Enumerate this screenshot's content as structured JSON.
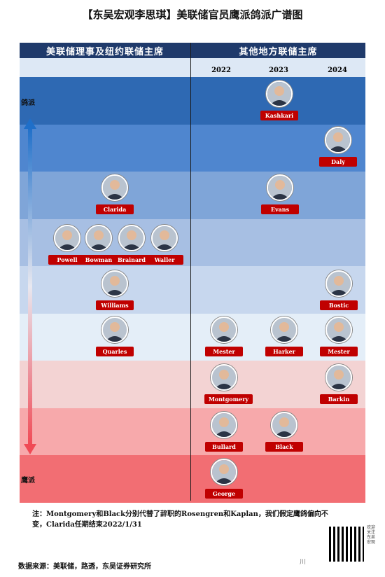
{
  "title": "【东吴宏观李思琪】美联储官员鹰派鸽派广谱图",
  "header": {
    "left": "美联储理事及纽约联储主席",
    "right": "其他地方联储主席",
    "years": [
      "2022",
      "2023",
      "2024"
    ]
  },
  "axis": {
    "top_label": "鸽派",
    "bottom_label": "鹰派"
  },
  "bands": [
    {
      "color": "#2e69b3"
    },
    {
      "color": "#4f86cf"
    },
    {
      "color": "#7fa5d8"
    },
    {
      "color": "#a7bfe3"
    },
    {
      "color": "#c7d7ee"
    },
    {
      "color": "#e4eef8"
    },
    {
      "color": "#f3d3d3"
    },
    {
      "color": "#f7a9ab"
    },
    {
      "color": "#f26e73"
    }
  ],
  "people": {
    "kashkari": "Kashkari",
    "daly": "Daly",
    "clarida": "Clarida",
    "evans": "Evans",
    "powell": "Powell",
    "bowman": "Bowman",
    "brainard": "Brainard",
    "waller": "Waller",
    "williams": "Williams",
    "bostic": "Bostic",
    "quarles": "Quarles",
    "mester_2022": "Mester",
    "harker": "Harker",
    "mester_2024": "Mester",
    "montgomery": "Montgomery",
    "barkin": "Barkin",
    "bullard": "Bullard",
    "black": "Black",
    "george": "George"
  },
  "note": "注：Montgomery和Black分别代替了辞职的Rosengren和Kaplan，我们假定鹰鸽偏向不变，Clarida任期结束2022/1/31",
  "source": "数据来源：美联储，路透，东吴证券研究所",
  "qr_side_text": "欢迎关注东吴宏观",
  "watermark": "川"
}
